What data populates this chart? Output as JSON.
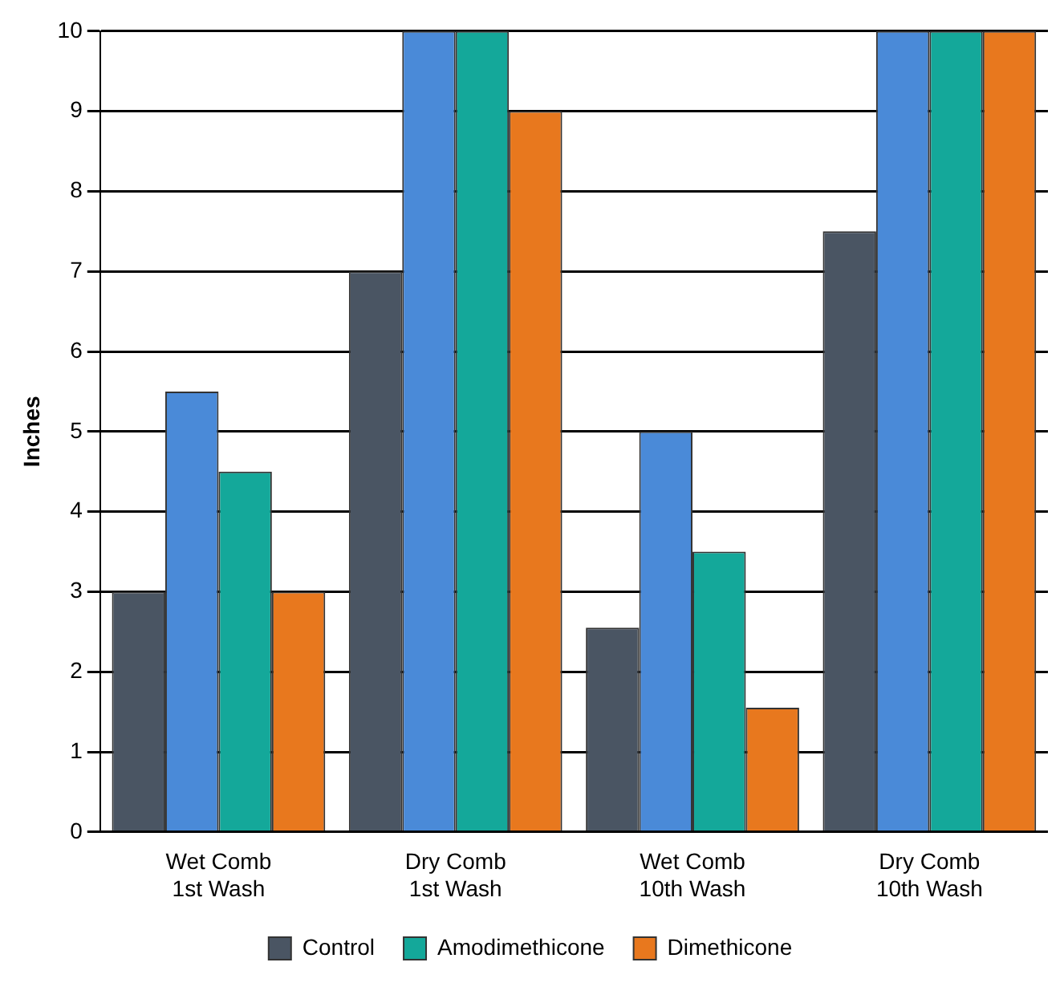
{
  "chart_data": {
    "type": "bar",
    "ylabel": "Inches",
    "categories": [
      "Wet Comb\n1st Wash",
      "Dry Comb\n1st Wash",
      "Wet Comb\n10th Wash",
      "Dry Comb\n10th Wash"
    ],
    "series": [
      {
        "name": "Control",
        "color": "#4a5563",
        "values": [
          3,
          7,
          2.55,
          7.5
        ]
      },
      {
        "color": "#4a8ad8",
        "values": [
          5.5,
          10,
          5,
          10
        ]
      },
      {
        "name": "Amodimethicone",
        "color": "#14a89a",
        "values": [
          4.5,
          10,
          3.5,
          10
        ]
      },
      {
        "name": "Dimethicone",
        "color": "#e8781e",
        "values": [
          3,
          9,
          1.55,
          10
        ]
      }
    ],
    "ylim": [
      0,
      10
    ],
    "yticks": [
      0,
      1,
      2,
      3,
      4,
      5,
      6,
      7,
      8,
      9,
      10
    ],
    "grid": "y",
    "legend": "bottom"
  }
}
